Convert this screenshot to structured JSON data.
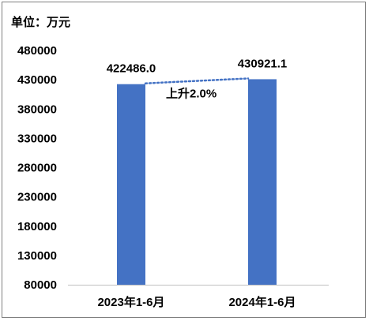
{
  "unit_label": "单位：万元",
  "chart_data": {
    "type": "bar",
    "categories": [
      "2023年1-6月",
      "2024年1-6月"
    ],
    "values": [
      422486.0,
      430921.1
    ],
    "data_labels": [
      "422486.0",
      "430921.1"
    ],
    "ylim": [
      80000,
      480000
    ],
    "y_ticks": [
      "80000",
      "130000",
      "180000",
      "230000",
      "280000",
      "330000",
      "380000",
      "430000",
      "480000"
    ],
    "grid": false,
    "legend": "none",
    "annotation": "上升2.0%",
    "trendline": "dotted",
    "bar_color": "#4472c4",
    "trend_color": "#4472c4"
  }
}
